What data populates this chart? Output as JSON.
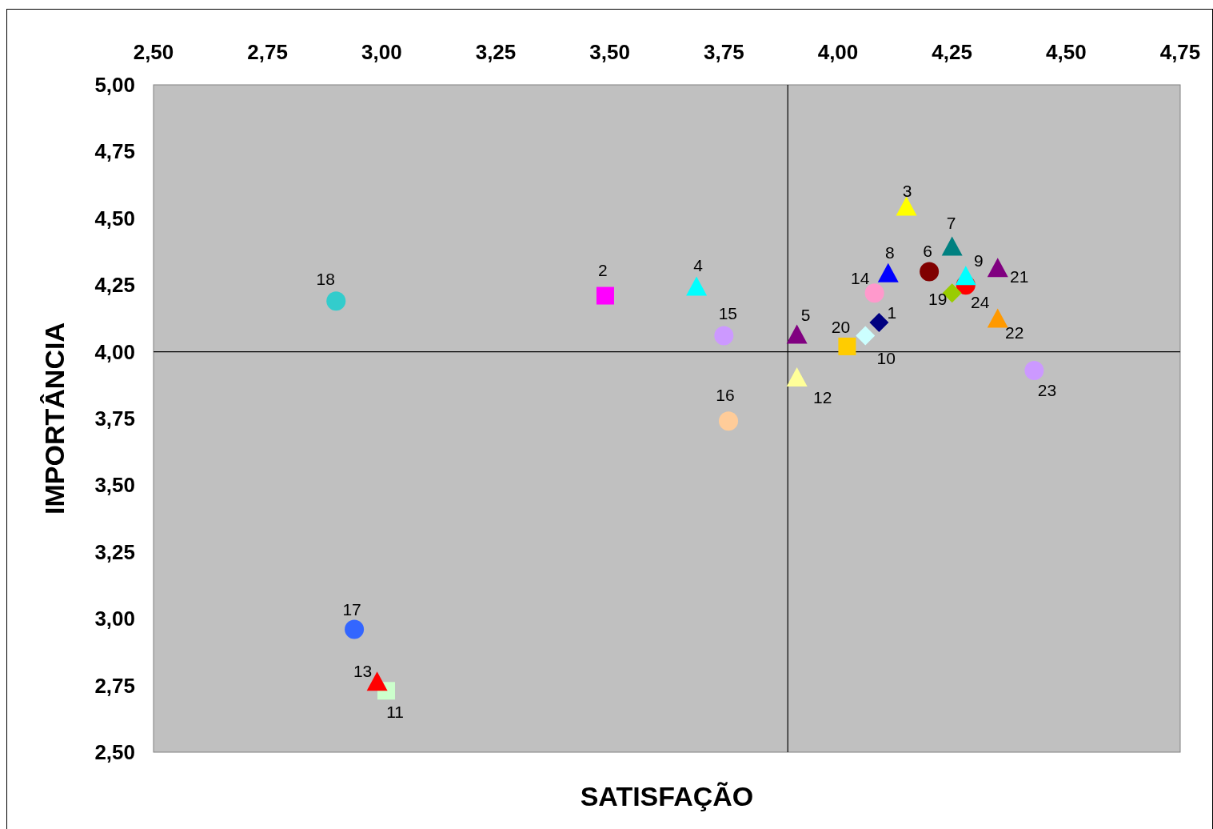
{
  "chart_data": {
    "type": "scatter",
    "xlabel": "SATISFAÇÃO",
    "ylabel": "IMPORTÂNCIA",
    "xlim": [
      2.5,
      4.75
    ],
    "ylim": [
      2.5,
      5.0
    ],
    "xticks": [
      {
        "value": 2.5,
        "label": "2,50"
      },
      {
        "value": 2.75,
        "label": "2,75"
      },
      {
        "value": 3.0,
        "label": "3,00"
      },
      {
        "value": 3.25,
        "label": "3,25"
      },
      {
        "value": 3.5,
        "label": "3,50"
      },
      {
        "value": 3.75,
        "label": "3,75"
      },
      {
        "value": 4.0,
        "label": "4,00"
      },
      {
        "value": 4.25,
        "label": "4,25"
      },
      {
        "value": 4.5,
        "label": "4,50"
      },
      {
        "value": 4.75,
        "label": "4,75"
      }
    ],
    "yticks": [
      {
        "value": 2.5,
        "label": "2,50"
      },
      {
        "value": 2.75,
        "label": "2,75"
      },
      {
        "value": 3.0,
        "label": "3,00"
      },
      {
        "value": 3.25,
        "label": "3,25"
      },
      {
        "value": 3.5,
        "label": "3,50"
      },
      {
        "value": 3.75,
        "label": "3,75"
      },
      {
        "value": 4.0,
        "label": "4,00"
      },
      {
        "value": 4.25,
        "label": "4,25"
      },
      {
        "value": 4.5,
        "label": "4,50"
      },
      {
        "value": 4.75,
        "label": "4,75"
      },
      {
        "value": 5.0,
        "label": "5,00"
      }
    ],
    "grid": false,
    "ref_lines": [
      {
        "axis": "x",
        "value": 3.89,
        "color": "#000000"
      },
      {
        "axis": "y",
        "value": 4.0,
        "color": "#000000"
      }
    ],
    "series": [
      {
        "name": "1",
        "color": "#000080",
        "marker": "diamond",
        "x": [
          4.09
        ],
        "values": [
          4.11
        ]
      },
      {
        "name": "2",
        "color": "#ff00ff",
        "marker": "square",
        "x": [
          3.49
        ],
        "values": [
          4.21
        ]
      },
      {
        "name": "3",
        "color": "#ffff00",
        "marker": "triangle",
        "x": [
          4.15
        ],
        "values": [
          4.54
        ]
      },
      {
        "name": "4",
        "color": "#00ffff",
        "marker": "triangle",
        "x": [
          3.69
        ],
        "values": [
          4.24
        ]
      },
      {
        "name": "5",
        "color": "#800080",
        "marker": "triangle",
        "x": [
          3.91
        ],
        "values": [
          4.06
        ]
      },
      {
        "name": "6",
        "color": "#800000",
        "marker": "circle",
        "x": [
          4.2
        ],
        "values": [
          4.3
        ]
      },
      {
        "name": "7",
        "color": "#008080",
        "marker": "triangle",
        "x": [
          4.25
        ],
        "values": [
          4.39
        ]
      },
      {
        "name": "8",
        "color": "#0000ff",
        "marker": "triangle",
        "x": [
          4.11
        ],
        "values": [
          4.29
        ]
      },
      {
        "name": "9",
        "color": "#00ffff",
        "marker": "triangle",
        "x": [
          4.28
        ],
        "values": [
          4.28
        ]
      },
      {
        "name": "10",
        "color": "#ccffff",
        "marker": "diamond",
        "x": [
          4.06
        ],
        "values": [
          4.06
        ]
      },
      {
        "name": "11",
        "color": "#ccffcc",
        "marker": "square",
        "x": [
          3.01
        ],
        "values": [
          2.73
        ]
      },
      {
        "name": "12",
        "color": "#ffff99",
        "marker": "triangle",
        "x": [
          3.91
        ],
        "values": [
          3.9
        ]
      },
      {
        "name": "13",
        "color": "#ff0000",
        "marker": "triangle",
        "x": [
          2.99
        ],
        "values": [
          2.76
        ]
      },
      {
        "name": "14",
        "color": "#ff99cc",
        "marker": "circle",
        "x": [
          4.08
        ],
        "values": [
          4.22
        ]
      },
      {
        "name": "15",
        "color": "#cc99ff",
        "marker": "circle",
        "x": [
          3.75
        ],
        "values": [
          4.06
        ]
      },
      {
        "name": "16",
        "color": "#ffcc99",
        "marker": "circle",
        "x": [
          3.76
        ],
        "values": [
          3.74
        ]
      },
      {
        "name": "17",
        "color": "#3366ff",
        "marker": "circle",
        "x": [
          2.94
        ],
        "values": [
          2.96
        ]
      },
      {
        "name": "18",
        "color": "#33cccc",
        "marker": "circle",
        "x": [
          2.9
        ],
        "values": [
          4.19
        ]
      },
      {
        "name": "19",
        "color": "#99cc00",
        "marker": "diamond",
        "x": [
          4.25
        ],
        "values": [
          4.22
        ]
      },
      {
        "name": "20",
        "color": "#ffcc00",
        "marker": "square",
        "x": [
          4.02
        ],
        "values": [
          4.02
        ]
      },
      {
        "name": "21",
        "color": "#800080",
        "marker": "triangle",
        "x": [
          4.35
        ],
        "values": [
          4.31
        ]
      },
      {
        "name": "22",
        "color": "#ff9900",
        "marker": "triangle",
        "x": [
          4.35
        ],
        "values": [
          4.12
        ]
      },
      {
        "name": "23",
        "color": "#cc99ff",
        "marker": "circle",
        "x": [
          4.43
        ],
        "values": [
          3.93
        ]
      },
      {
        "name": "24",
        "color": "#ff0000",
        "marker": "circle",
        "x": [
          4.28
        ],
        "values": [
          4.25
        ]
      }
    ]
  }
}
